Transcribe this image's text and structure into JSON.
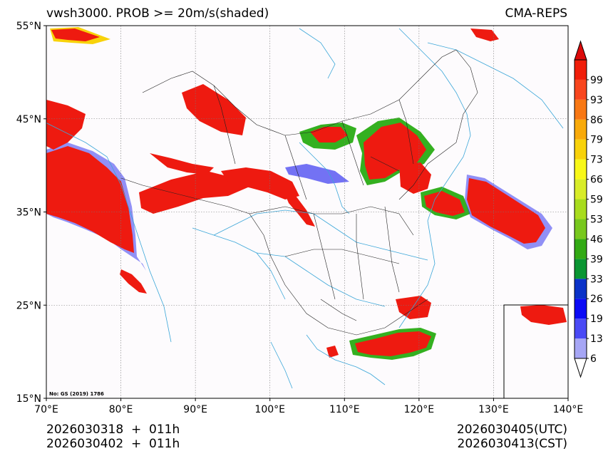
{
  "title": {
    "left": "vwsh3000. PROB >= 20m/s(shaded)",
    "right": "CMA-REPS"
  },
  "footer": {
    "left": [
      "2026030318  +  011h",
      "2026030402  +  011h"
    ],
    "right": [
      "2026030405(UTC)",
      "2026030413(CST)"
    ]
  },
  "map": {
    "lon_range": [
      70,
      140
    ],
    "lat_range": [
      15,
      55
    ],
    "lon_ticks": [
      70,
      80,
      90,
      100,
      110,
      120,
      130,
      140
    ],
    "lon_labels": [
      "70°E",
      "80°E",
      "90°E",
      "100°E",
      "110°E",
      "120°E",
      "130°E",
      "140°E"
    ],
    "lat_ticks": [
      15,
      25,
      35,
      45,
      55
    ],
    "lat_labels": [
      "15°N",
      "25°N",
      "35°N",
      "45°N",
      "55°N"
    ],
    "copyright": "No: GS (2019) 1786"
  },
  "colorbar": {
    "labels": [
      "6",
      "13",
      "19",
      "26",
      "33",
      "39",
      "46",
      "53",
      "59",
      "66",
      "73",
      "79",
      "86",
      "93",
      "99"
    ],
    "colors": [
      "#a6a6f5",
      "#4a4af5",
      "#0a0af5",
      "#0a32c8",
      "#0a9632",
      "#32aa14",
      "#78c81e",
      "#a8dc1e",
      "#d8ec28",
      "#f8f818",
      "#f8d20a",
      "#f8aa0a",
      "#f87814",
      "#f8461e",
      "#f01e0a"
    ],
    "over_color": "#dc0a0a",
    "under_color": "#ffffff"
  },
  "colors": {
    "shade_high": "#ee1a10",
    "shade_mid": "#34b020",
    "shade_low": "#3838f0",
    "river": "#3aa6d8",
    "background": "#fdfbfd"
  }
}
